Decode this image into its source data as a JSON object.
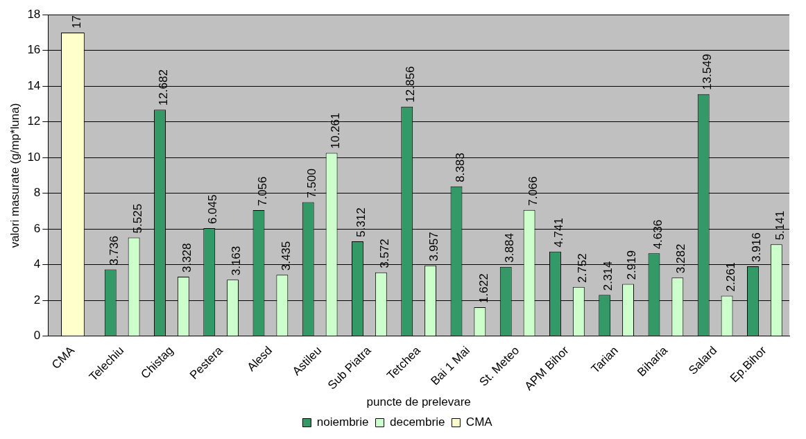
{
  "chart_data": {
    "type": "bar",
    "xlabel": "puncte de prelevare",
    "ylabel": "valori masurate (g/mp*luna)",
    "categories": [
      "CMA",
      "Telechiu",
      "Chistag",
      "Pestera",
      "Alesd",
      "Astileu",
      "Sub Piatra",
      "Tetchea",
      "Bai 1 Mai",
      "St. Meteo",
      "APM Bihor",
      "Tarian",
      "Biharia",
      "Salard",
      "Ep.Bihor"
    ],
    "series": [
      {
        "name": "noiembrie",
        "color": "#339966",
        "values": [
          null,
          3.736,
          12.682,
          6.045,
          7.056,
          7.5,
          5.312,
          12.856,
          8.383,
          3.884,
          4.741,
          2.314,
          4.636,
          13.549,
          3.916
        ],
        "value_labels": [
          null,
          "3.736",
          "12.682",
          "6.045",
          "7.056",
          "7.500",
          "5.312",
          "12.856",
          "8.383",
          "3.884",
          "4.741",
          "2.314",
          "4.636",
          "13.549",
          "3.916"
        ]
      },
      {
        "name": "decembrie",
        "color": "#ccffcc",
        "values": [
          null,
          5.525,
          3.328,
          3.163,
          3.435,
          10.261,
          3.572,
          3.957,
          1.622,
          7.066,
          2.752,
          2.919,
          3.282,
          2.261,
          5.141
        ],
        "value_labels": [
          null,
          "5.525",
          "3.328",
          "3.163",
          "3.435",
          "10.261",
          "3.572",
          "3.957",
          "1.622",
          "7.066",
          "2.752",
          "2.919",
          "3.282",
          "2.261",
          "5.141"
        ]
      },
      {
        "name": "CMA",
        "color": "#ffffcc",
        "values": [
          17,
          null,
          null,
          null,
          null,
          null,
          null,
          null,
          null,
          null,
          null,
          null,
          null,
          null,
          null
        ],
        "value_labels": [
          "17",
          null,
          null,
          null,
          null,
          null,
          null,
          null,
          null,
          null,
          null,
          null,
          null,
          null,
          null
        ]
      }
    ],
    "ylim": [
      0,
      18
    ],
    "yticks": [
      0,
      2,
      4,
      6,
      8,
      10,
      12,
      14,
      16,
      18
    ],
    "grid": "y",
    "legend": "bottom"
  }
}
